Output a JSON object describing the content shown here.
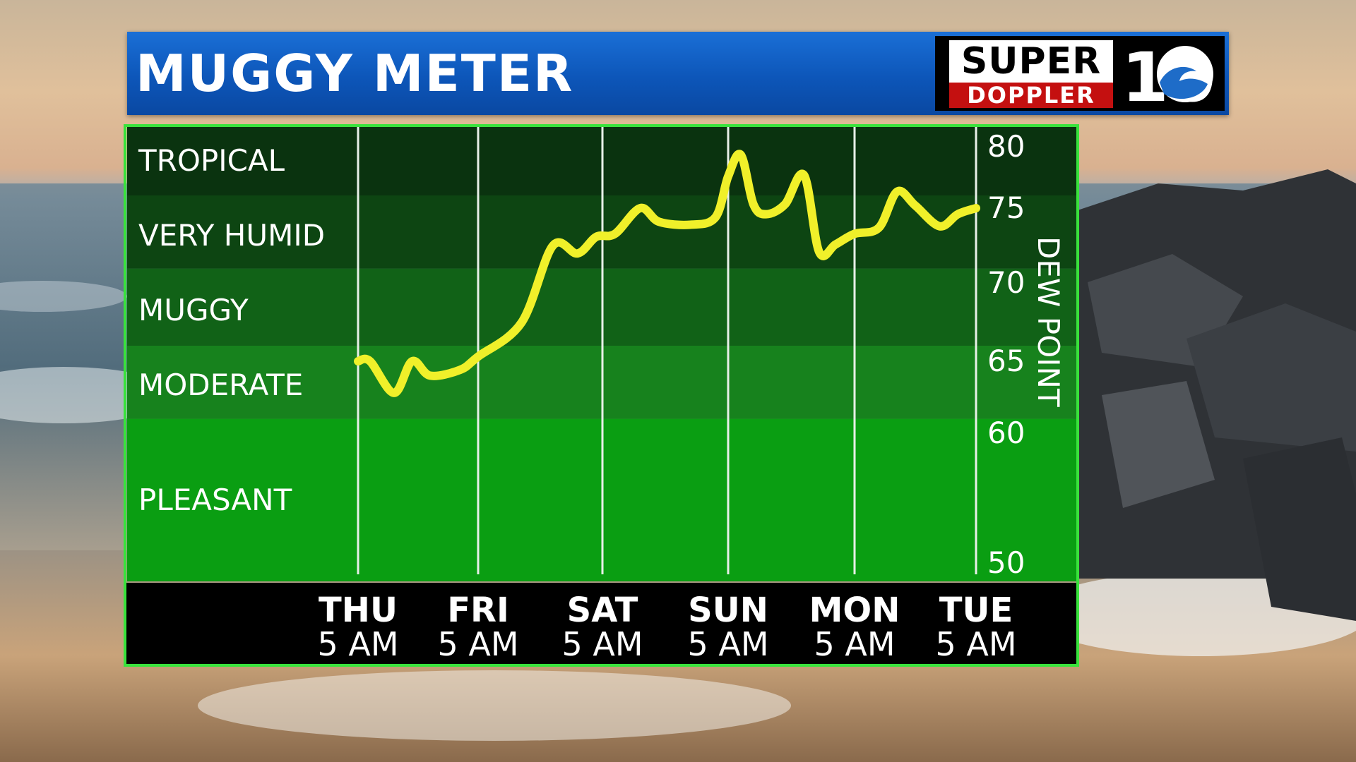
{
  "header": {
    "title": "MUGGY METER",
    "logo_top": "SUPER",
    "logo_bottom": "DOPPLER",
    "logo_number": "10"
  },
  "colors": {
    "header_blue": "#0d56b9",
    "chart_border": "#39e23c",
    "line": "#f0f02a",
    "band_tropical": "#0a330f",
    "band_very_humid": "#0d4512",
    "band_muggy": "#116217",
    "band_moderate": "#17821d",
    "band_pleasant": "#0a9e12"
  },
  "bands": [
    {
      "label": "TROPICAL",
      "from": 76,
      "to": 80
    },
    {
      "label": "VERY HUMID",
      "from": 71,
      "to": 76
    },
    {
      "label": "MUGGY",
      "from": 66,
      "to": 71
    },
    {
      "label": "MODERATE",
      "from": 61,
      "to": 66
    },
    {
      "label": "PLEASANT",
      "from": 50,
      "to": 61
    }
  ],
  "chart_data": {
    "type": "line",
    "ylabel": "DEW POINT",
    "yticks": [
      "80",
      "75",
      "70",
      "65",
      "60",
      "50"
    ],
    "x_labels": [
      {
        "day": "THU",
        "time": "5 AM"
      },
      {
        "day": "FRI",
        "time": "5 AM"
      },
      {
        "day": "SAT",
        "time": "5 AM"
      },
      {
        "day": "SUN",
        "time": "5 AM"
      },
      {
        "day": "MON",
        "time": "5 AM"
      },
      {
        "day": "TUE",
        "time": "5 AM"
      }
    ],
    "series": [
      {
        "x": [
          0,
          0.1,
          0.3,
          0.45,
          0.6,
          0.85,
          1.0,
          1.35,
          1.6,
          1.8,
          1.95,
          2.1,
          2.3,
          2.45,
          2.7,
          2.9,
          3.0,
          3.1,
          3.2,
          3.3,
          3.45,
          3.6,
          3.72,
          3.85,
          4.0,
          4.2,
          4.35,
          4.5,
          4.7,
          4.85,
          5.0
        ],
        "values": [
          65,
          65,
          62.8,
          65,
          64,
          64.4,
          65.3,
          67.5,
          72.5,
          72.0,
          73.1,
          73.3,
          75.0,
          74.1,
          73.9,
          74.4,
          77.5,
          79.2,
          75.3,
          74.6,
          75.3,
          77.6,
          72.1,
          72.6,
          73.3,
          73.7,
          76.3,
          75.2,
          73.8,
          74.6,
          75.0
        ]
      }
    ],
    "ylim": [
      50,
      80
    ],
    "grid": "vertical"
  }
}
